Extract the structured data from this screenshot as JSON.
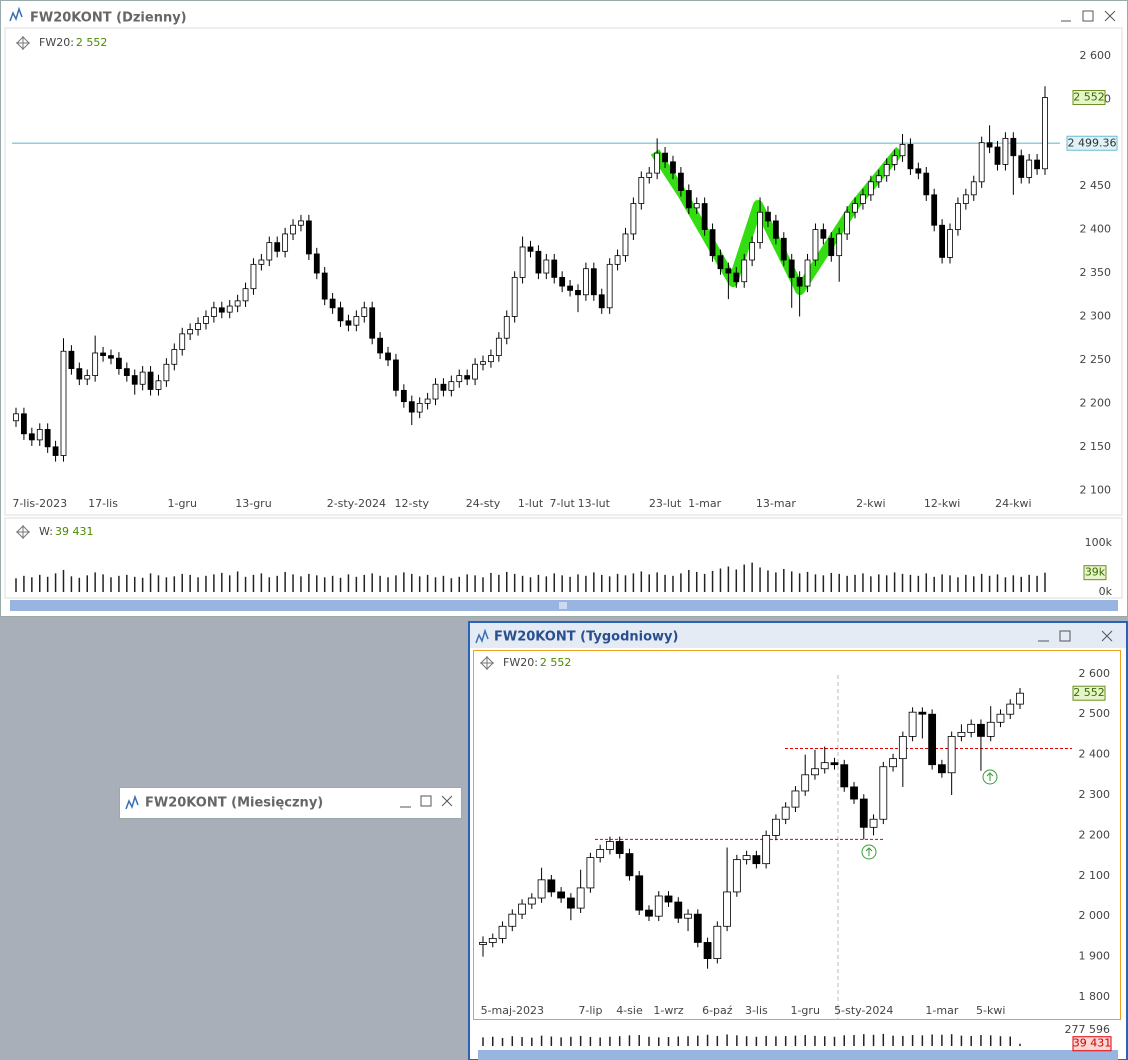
{
  "windows": [
    {
      "title": "FW20KONT (Dzienny)"
    },
    {
      "title": "FW20KONT (Tygodniowy)"
    },
    {
      "title": "FW20KONT (Miesięczny)"
    }
  ],
  "chart_data": [
    {
      "type": "candlestick",
      "legend_label": "FW20:",
      "legend_value": "2 552",
      "categories": [
        null,
        null,
        null,
        "7-lis-2023",
        null,
        null,
        null,
        null,
        null,
        null,
        null,
        "17-lis",
        null,
        null,
        null,
        null,
        null,
        null,
        null,
        null,
        null,
        "1-gru",
        null,
        null,
        null,
        null,
        null,
        null,
        null,
        null,
        "13-gru",
        null,
        null,
        null,
        null,
        null,
        null,
        null,
        null,
        null,
        null,
        null,
        null,
        "2-sty-2024",
        null,
        null,
        null,
        null,
        null,
        null,
        "12-sty",
        null,
        null,
        null,
        null,
        null,
        null,
        null,
        null,
        "24-sty",
        null,
        null,
        null,
        null,
        null,
        "1-lut",
        null,
        null,
        null,
        "7-lut",
        null,
        null,
        null,
        "13-lut",
        null,
        null,
        null,
        null,
        null,
        null,
        null,
        null,
        "23-lut",
        null,
        null,
        null,
        null,
        "1-mar",
        null,
        null,
        null,
        null,
        null,
        null,
        null,
        null,
        "13-mar",
        null,
        null,
        null,
        null,
        null,
        null,
        null,
        null,
        null,
        null,
        null,
        "2-kwi",
        null,
        null,
        null,
        null,
        null,
        null,
        null,
        null,
        "12-kwi",
        null,
        null,
        null,
        null,
        null,
        null,
        null,
        null,
        "24-kwi",
        null,
        null,
        null,
        null
      ],
      "open": [
        2180,
        2188,
        2165,
        2158,
        2170,
        2150,
        2140,
        2260,
        2240,
        2228,
        2232,
        2258,
        2255,
        2252,
        2240,
        2232,
        2222,
        2236,
        2216,
        2226,
        2245,
        2262,
        2280,
        2285,
        2292,
        2300,
        2310,
        2305,
        2312,
        2318,
        2332,
        2360,
        2365,
        2385,
        2375,
        2395,
        2405,
        2410,
        2372,
        2350,
        2320,
        2310,
        2295,
        2290,
        2300,
        2310,
        2275,
        2258,
        2250,
        2215,
        2202,
        2190,
        2200,
        2205,
        2222,
        2215,
        2225,
        2232,
        2228,
        2245,
        2248,
        2255,
        2275,
        2300,
        2345,
        2380,
        2375,
        2350,
        2365,
        2345,
        2335,
        2330,
        2325,
        2355,
        2325,
        2310,
        2360,
        2370,
        2395,
        2430,
        2460,
        2465,
        2488,
        2478,
        2465,
        2445,
        2425,
        2430,
        2400,
        2370,
        2355,
        2350,
        2340,
        2365,
        2385,
        2420,
        2410,
        2390,
        2365,
        2345,
        2335,
        2365,
        2400,
        2390,
        2370,
        2395,
        2420,
        2430,
        2440,
        2455,
        2462,
        2475,
        2485,
        2498,
        2470,
        2465,
        2440,
        2405,
        2368,
        2400,
        2430,
        2440,
        2455,
        2500,
        2495,
        2475,
        2505,
        2485,
        2460,
        2480,
        2470
      ],
      "high": [
        2195,
        2195,
        2172,
        2177,
        2177,
        2157,
        2275,
        2267,
        2247,
        2239,
        2278,
        2265,
        2262,
        2259,
        2247,
        2239,
        2243,
        2243,
        2233,
        2252,
        2269,
        2287,
        2292,
        2299,
        2307,
        2317,
        2317,
        2319,
        2325,
        2339,
        2367,
        2372,
        2392,
        2392,
        2402,
        2412,
        2417,
        2417,
        2379,
        2357,
        2327,
        2317,
        2302,
        2307,
        2317,
        2317,
        2282,
        2265,
        2257,
        2222,
        2209,
        2207,
        2212,
        2229,
        2229,
        2232,
        2239,
        2239,
        2252,
        2255,
        2262,
        2282,
        2307,
        2352,
        2392,
        2387,
        2382,
        2372,
        2372,
        2352,
        2342,
        2337,
        2362,
        2362,
        2332,
        2367,
        2377,
        2402,
        2437,
        2467,
        2472,
        2505,
        2495,
        2485,
        2472,
        2452,
        2437,
        2437,
        2407,
        2377,
        2362,
        2357,
        2372,
        2392,
        2437,
        2427,
        2417,
        2397,
        2372,
        2352,
        2372,
        2407,
        2407,
        2397,
        2402,
        2427,
        2437,
        2447,
        2462,
        2469,
        2482,
        2492,
        2510,
        2505,
        2477,
        2472,
        2447,
        2412,
        2407,
        2437,
        2447,
        2462,
        2507,
        2520,
        2502,
        2512,
        2512,
        2492,
        2487,
        2487,
        2565
      ],
      "low": [
        2173,
        2158,
        2151,
        2151,
        2143,
        2133,
        2133,
        2233,
        2221,
        2221,
        2225,
        2248,
        2245,
        2233,
        2225,
        2210,
        2215,
        2209,
        2209,
        2219,
        2238,
        2255,
        2273,
        2278,
        2285,
        2293,
        2298,
        2298,
        2305,
        2311,
        2325,
        2353,
        2358,
        2368,
        2368,
        2388,
        2398,
        2365,
        2343,
        2313,
        2303,
        2288,
        2283,
        2283,
        2293,
        2268,
        2251,
        2243,
        2208,
        2195,
        2175,
        2183,
        2193,
        2198,
        2208,
        2208,
        2218,
        2221,
        2221,
        2238,
        2241,
        2248,
        2268,
        2293,
        2338,
        2368,
        2343,
        2343,
        2338,
        2328,
        2323,
        2305,
        2318,
        2318,
        2303,
        2303,
        2353,
        2363,
        2388,
        2423,
        2453,
        2458,
        2471,
        2458,
        2438,
        2418,
        2418,
        2393,
        2363,
        2348,
        2320,
        2333,
        2333,
        2358,
        2378,
        2403,
        2383,
        2358,
        2310,
        2300,
        2328,
        2358,
        2383,
        2363,
        2340,
        2388,
        2413,
        2423,
        2433,
        2448,
        2455,
        2468,
        2478,
        2463,
        2458,
        2433,
        2398,
        2361,
        2361,
        2393,
        2423,
        2433,
        2448,
        2488,
        2468,
        2468,
        2440,
        2453,
        2453,
        2463,
        2463
      ],
      "close": [
        2188,
        2165,
        2158,
        2170,
        2150,
        2140,
        2260,
        2240,
        2228,
        2232,
        2258,
        2255,
        2252,
        2240,
        2232,
        2222,
        2236,
        2216,
        2226,
        2245,
        2262,
        2280,
        2285,
        2292,
        2300,
        2310,
        2305,
        2312,
        2318,
        2332,
        2360,
        2365,
        2385,
        2375,
        2395,
        2405,
        2410,
        2372,
        2350,
        2320,
        2310,
        2295,
        2290,
        2300,
        2310,
        2275,
        2258,
        2250,
        2215,
        2202,
        2190,
        2200,
        2205,
        2222,
        2215,
        2225,
        2232,
        2228,
        2245,
        2248,
        2255,
        2275,
        2300,
        2345,
        2380,
        2375,
        2350,
        2365,
        2345,
        2335,
        2330,
        2325,
        2355,
        2325,
        2310,
        2360,
        2370,
        2395,
        2430,
        2460,
        2465,
        2488,
        2478,
        2465,
        2445,
        2425,
        2430,
        2400,
        2370,
        2355,
        2350,
        2340,
        2365,
        2385,
        2420,
        2410,
        2390,
        2365,
        2345,
        2335,
        2365,
        2400,
        2390,
        2370,
        2395,
        2420,
        2430,
        2440,
        2455,
        2462,
        2475,
        2485,
        2498,
        2470,
        2465,
        2440,
        2405,
        2368,
        2400,
        2430,
        2440,
        2455,
        2500,
        2495,
        2475,
        2505,
        2485,
        2460,
        2480,
        2470,
        2552
      ],
      "ylim": [
        2075,
        2632
      ],
      "yticks": [
        {
          "value": 2100,
          "label": "2 100"
        },
        {
          "value": 2150,
          "label": "2 150"
        },
        {
          "value": 2200,
          "label": "2 200"
        },
        {
          "value": 2250,
          "label": "2 250"
        },
        {
          "value": 2300,
          "label": "2 300"
        },
        {
          "value": 2350,
          "label": "2 350"
        },
        {
          "value": 2400,
          "label": "2 400"
        },
        {
          "value": 2450,
          "label": "2 450"
        },
        {
          "value": 2500,
          "label": "2 500"
        },
        {
          "value": 2550,
          "label": "2 550"
        },
        {
          "value": 2600,
          "label": "2 600"
        }
      ],
      "hline": {
        "value": 2499.36,
        "label": "2 499.36",
        "color": "#8ecfe2"
      },
      "last": {
        "value": 2552,
        "label": "2 552"
      },
      "up_color": "#ffffff",
      "down_color": "#000000",
      "pattern_color": "#33dd11"
    },
    {
      "type": "bar",
      "legend_label": "W:",
      "legend_value": "39 431",
      "values": [
        28000,
        33000,
        30000,
        35000,
        31000,
        38000,
        45000,
        32000,
        29000,
        34000,
        40000,
        36000,
        30000,
        33000,
        35000,
        31000,
        29000,
        38000,
        34000,
        30000,
        32000,
        37000,
        35000,
        30000,
        33000,
        36000,
        39000,
        34000,
        42000,
        31000,
        35000,
        38000,
        30000,
        33000,
        41000,
        36000,
        32000,
        37000,
        34000,
        30000,
        33000,
        29000,
        36000,
        31000,
        35000,
        38000,
        33000,
        30000,
        34000,
        40000,
        37000,
        32000,
        35000,
        30000,
        33000,
        28000,
        31000,
        36000,
        34000,
        30000,
        39000,
        35000,
        41000,
        37000,
        33000,
        30000,
        35000,
        32000,
        38000,
        34000,
        31000,
        36000,
        33000,
        40000,
        35000,
        32000,
        37000,
        34000,
        38000,
        42000,
        36000,
        40000,
        35000,
        33000,
        38000,
        45000,
        41000,
        37000,
        43000,
        48000,
        52000,
        46000,
        56000,
        60000,
        50000,
        44000,
        40000,
        47000,
        42000,
        38000,
        41000,
        36000,
        34000,
        39000,
        37000,
        33000,
        35000,
        38000,
        32000,
        36000,
        34000,
        40000,
        37000,
        35000,
        33000,
        38000,
        31000,
        36000,
        34000,
        30000,
        35000,
        32000,
        37000,
        33000,
        36000,
        30000,
        34000,
        31000,
        35000,
        33000,
        39431
      ],
      "ylim": [
        0,
        100000
      ],
      "yticks": [
        {
          "value": 0,
          "label": "0k"
        },
        {
          "value": 100000,
          "label": "100k"
        }
      ],
      "last": {
        "value": 39431,
        "label": "39k"
      },
      "color": "#222222"
    },
    {
      "type": "candlestick",
      "legend_label": "FW20:",
      "legend_value": "2 552",
      "categories": [
        null,
        null,
        null,
        "5-maj-2023",
        null,
        null,
        null,
        null,
        null,
        null,
        null,
        "7-lip",
        null,
        null,
        null,
        "4-sie",
        null,
        null,
        null,
        "1-wrz",
        null,
        null,
        null,
        null,
        "6-paź",
        null,
        null,
        null,
        "3-lis",
        null,
        null,
        null,
        null,
        "1-gru",
        null,
        null,
        null,
        null,
        null,
        "5-sty-2024",
        null,
        null,
        null,
        null,
        null,
        null,
        null,
        "1-mar",
        null,
        null,
        null,
        null,
        "5-kwi",
        null,
        null,
        null
      ],
      "open": [
        1930,
        1935,
        1945,
        1975,
        2005,
        2030,
        2045,
        2090,
        2060,
        2045,
        2020,
        2070,
        2145,
        2165,
        2185,
        2155,
        2100,
        2015,
        2000,
        2050,
        2035,
        1995,
        2005,
        1935,
        1895,
        1975,
        2060,
        2140,
        2150,
        2130,
        2200,
        2240,
        2270,
        2310,
        2350,
        2365,
        2380,
        2375,
        2320,
        2290,
        2220,
        2240,
        2370,
        2390,
        2445,
        2505,
        2500,
        2375,
        2355,
        2445,
        2455,
        2475,
        2445,
        2480,
        2500,
        2525
      ],
      "high": [
        1950,
        1957,
        1987,
        2017,
        2042,
        2057,
        2120,
        2102,
        2072,
        2057,
        2115,
        2157,
        2177,
        2197,
        2197,
        2167,
        2112,
        2027,
        2062,
        2062,
        2047,
        2017,
        2017,
        1947,
        1987,
        2170,
        2152,
        2162,
        2162,
        2212,
        2252,
        2282,
        2322,
        2400,
        2412,
        2420,
        2392,
        2387,
        2332,
        2302,
        2252,
        2382,
        2402,
        2457,
        2517,
        2517,
        2512,
        2387,
        2457,
        2475,
        2487,
        2487,
        2520,
        2512,
        2537,
        2565
      ],
      "low": [
        1900,
        1923,
        1933,
        1963,
        1993,
        2018,
        2033,
        2048,
        2033,
        1990,
        2008,
        2058,
        2133,
        2153,
        2143,
        2088,
        2003,
        1988,
        1988,
        2023,
        1983,
        1963,
        1923,
        1870,
        1883,
        1963,
        2048,
        2128,
        2118,
        2118,
        2188,
        2228,
        2258,
        2298,
        2338,
        2353,
        2363,
        2308,
        2278,
        2190,
        2200,
        2228,
        2358,
        2320,
        2433,
        2440,
        2363,
        2343,
        2300,
        2433,
        2443,
        2360,
        2433,
        2468,
        2488,
        2513
      ],
      "close": [
        1935,
        1945,
        1975,
        2005,
        2030,
        2045,
        2090,
        2060,
        2045,
        2020,
        2070,
        2145,
        2165,
        2185,
        2155,
        2100,
        2015,
        2000,
        2050,
        2035,
        1995,
        2005,
        1935,
        1895,
        1975,
        2060,
        2140,
        2150,
        2130,
        2200,
        2240,
        2270,
        2310,
        2350,
        2365,
        2380,
        2375,
        2320,
        2290,
        2220,
        2240,
        2370,
        2390,
        2445,
        2505,
        2500,
        2375,
        2355,
        2445,
        2455,
        2475,
        2445,
        2480,
        2500,
        2525,
        2552
      ],
      "ylim": [
        1743,
        2654
      ],
      "yticks": [
        {
          "value": 1800,
          "label": "1 800"
        },
        {
          "value": 1900,
          "label": "1 900"
        },
        {
          "value": 2000,
          "label": "2 000"
        },
        {
          "value": 2100,
          "label": "2 100"
        },
        {
          "value": 2200,
          "label": "2 200"
        },
        {
          "value": 2300,
          "label": "2 300"
        },
        {
          "value": 2400,
          "label": "2 400"
        },
        {
          "value": 2500,
          "label": "2 500"
        },
        {
          "value": 2600,
          "label": "2 600"
        }
      ],
      "hlines": [
        {
          "value": 2190,
          "color": "#e00000"
        },
        {
          "value": 2415,
          "color": "#e00000"
        }
      ],
      "last": {
        "value": 2552,
        "label": "2 552"
      },
      "up_color": "#ffffff",
      "down_color": "#000000"
    },
    {
      "type": "bar",
      "values": [
        150000,
        160000,
        140000,
        170000,
        155000,
        145000,
        180000,
        165000,
        150000,
        160000,
        175000,
        158000,
        148000,
        162000,
        170000,
        185000,
        190000,
        160000,
        150000,
        155000,
        165000,
        170000,
        180000,
        195000,
        175000,
        200000,
        185000,
        170000,
        160000,
        175000,
        168000,
        172000,
        180000,
        190000,
        176000,
        170000,
        160000,
        185000,
        190000,
        205000,
        195000,
        210000,
        180000,
        175000,
        190000,
        185000,
        200000,
        195000,
        205000,
        180000,
        175000,
        190000,
        185000,
        170000,
        165000,
        39431
      ],
      "ylim": [
        0,
        277596
      ],
      "yticks": [
        {
          "value": 277596,
          "label": "277 596"
        }
      ],
      "last": {
        "value": 39431,
        "label": "39 431"
      },
      "color": "#222222"
    }
  ]
}
